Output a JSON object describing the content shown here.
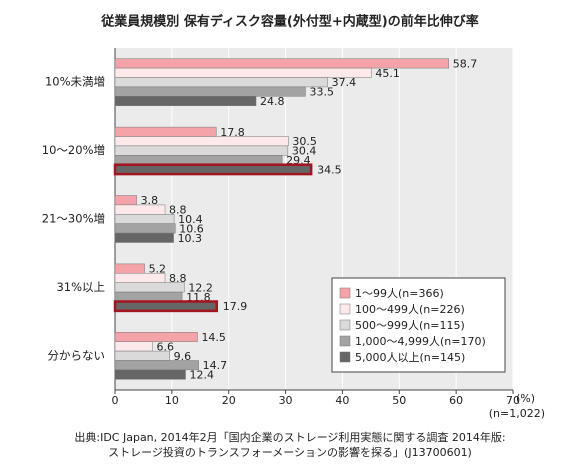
{
  "chart_data": {
    "type": "bar",
    "orientation": "horizontal",
    "title": "従業員規模別 保有ディスク容量(外付型+内蔵型)の前年比伸び率",
    "categories": [
      "10%未満増",
      "10〜20%増",
      "21〜30%増",
      "31%以上",
      "分からない"
    ],
    "series": [
      {
        "name": "1〜99人(n=366)",
        "color": "#f4a3a9",
        "values": [
          58.7,
          17.8,
          3.8,
          5.2,
          14.5
        ]
      },
      {
        "name": "100〜499人(n=226)",
        "color": "#fde9e9",
        "values": [
          45.1,
          30.5,
          8.8,
          8.8,
          6.6
        ]
      },
      {
        "name": "500〜999人(n=115)",
        "color": "#dadada",
        "values": [
          37.4,
          30.4,
          10.4,
          12.2,
          9.6
        ]
      },
      {
        "name": "1,000〜4,999人(n=170)",
        "color": "#a3a3a3",
        "values": [
          33.5,
          29.4,
          10.6,
          11.8,
          14.7
        ]
      },
      {
        "name": "5,000人以上(n=145)",
        "color": "#666666",
        "values": [
          24.8,
          34.5,
          10.3,
          17.9,
          12.4
        ],
        "highlight": [
          false,
          true,
          false,
          true,
          false
        ]
      }
    ],
    "highlight_color": "#a3151f",
    "xlim": [
      0,
      70
    ],
    "xticks": [
      0,
      10,
      20,
      30,
      40,
      50,
      60,
      70
    ],
    "x_unit": "(%)",
    "note": "(n=1,022)",
    "grid": true,
    "legend": "lower right",
    "source": [
      "出典:IDC Japan, 2014年2月「国内企業のストレージ利用実態に関する調査 2014年版:",
      "ストレージ投資のトランスフォーメーションの影響を探る」(J13700601)"
    ]
  }
}
